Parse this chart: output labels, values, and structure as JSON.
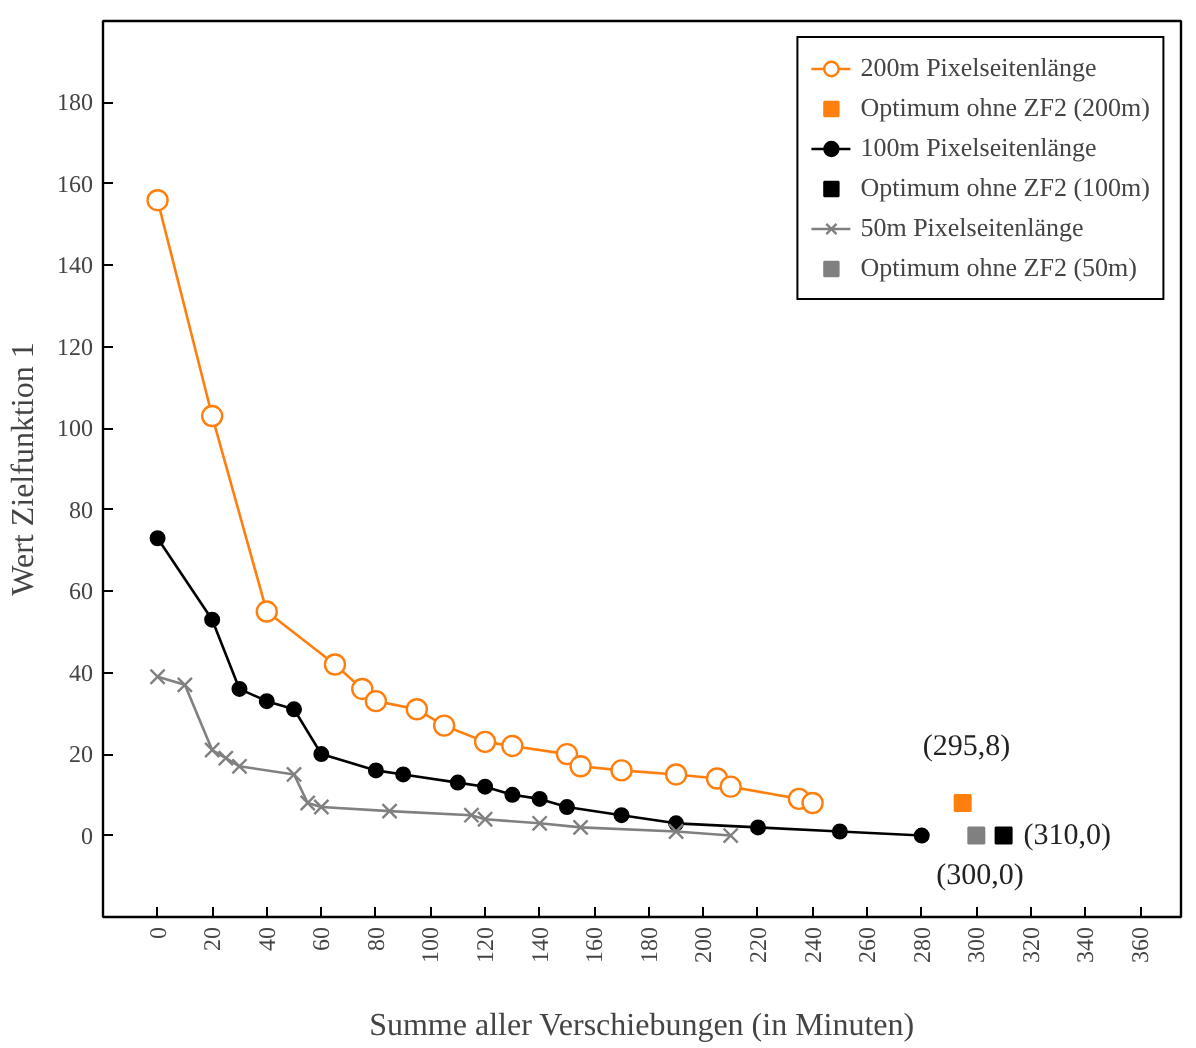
{
  "chart_data": {
    "type": "line",
    "xlabel": "Summe aller Verschiebungen (in Minuten)",
    "ylabel": "Wert Zielfunktion 1",
    "xlim": [
      -20,
      375
    ],
    "ylim": [
      -20,
      200
    ],
    "xticks": [
      0,
      20,
      40,
      60,
      80,
      100,
      120,
      140,
      160,
      180,
      200,
      220,
      240,
      260,
      280,
      300,
      320,
      340,
      360
    ],
    "yticks": [
      0,
      20,
      40,
      60,
      80,
      100,
      120,
      140,
      160,
      180
    ],
    "grid": false,
    "legend": "top right",
    "series": [
      {
        "name": "200m Pixelseitenlänge",
        "marker": "circle",
        "color": "#ff7f0e",
        "x": [
          0,
          20,
          40,
          65,
          75,
          80,
          95,
          105,
          120,
          130,
          150,
          155,
          170,
          190,
          205,
          210,
          235,
          240
        ],
        "values": [
          156,
          103,
          55,
          42,
          36,
          33,
          31,
          27,
          23,
          22,
          20,
          17,
          16,
          15,
          14,
          12,
          9,
          8
        ]
      },
      {
        "name": "Optimum ohne ZF2 (200m)",
        "type": "scatter",
        "marker": "square",
        "color": "#ff7f0e",
        "x": [
          295
        ],
        "values": [
          8
        ]
      },
      {
        "name": "100m Pixelseitenlänge",
        "marker": "circle",
        "color": "#000000",
        "x": [
          0,
          20,
          30,
          40,
          50,
          60,
          80,
          90,
          110,
          120,
          130,
          140,
          150,
          170,
          190,
          220,
          250,
          280
        ],
        "values": [
          73,
          53,
          36,
          33,
          31,
          20,
          16,
          15,
          13,
          12,
          10,
          9,
          7,
          5,
          3,
          2,
          1,
          0
        ]
      },
      {
        "name": "Optimum ohne ZF2 (100m)",
        "type": "scatter",
        "marker": "square",
        "color": "#000000",
        "x": [
          310
        ],
        "values": [
          0
        ]
      },
      {
        "name": "50m Pixelseitenlänge",
        "marker": "cross",
        "color": "#808080",
        "x": [
          0,
          10,
          20,
          25,
          30,
          50,
          55,
          60,
          85,
          115,
          120,
          140,
          155,
          190,
          210
        ],
        "values": [
          39,
          37,
          21,
          19,
          17,
          15,
          8,
          7,
          6,
          5,
          4,
          3,
          2,
          1,
          0
        ]
      },
      {
        "name": "Optimum ohne ZF2 (50m)",
        "type": "scatter",
        "marker": "square",
        "color": "#808080",
        "x": [
          300
        ],
        "values": [
          0
        ]
      }
    ],
    "annotations": [
      {
        "text": "(295,8)",
        "x": 295,
        "y": 8
      },
      {
        "text": "(300,0)",
        "x": 300,
        "y": 0
      },
      {
        "text": "(310,0)",
        "x": 310,
        "y": 0
      }
    ]
  }
}
